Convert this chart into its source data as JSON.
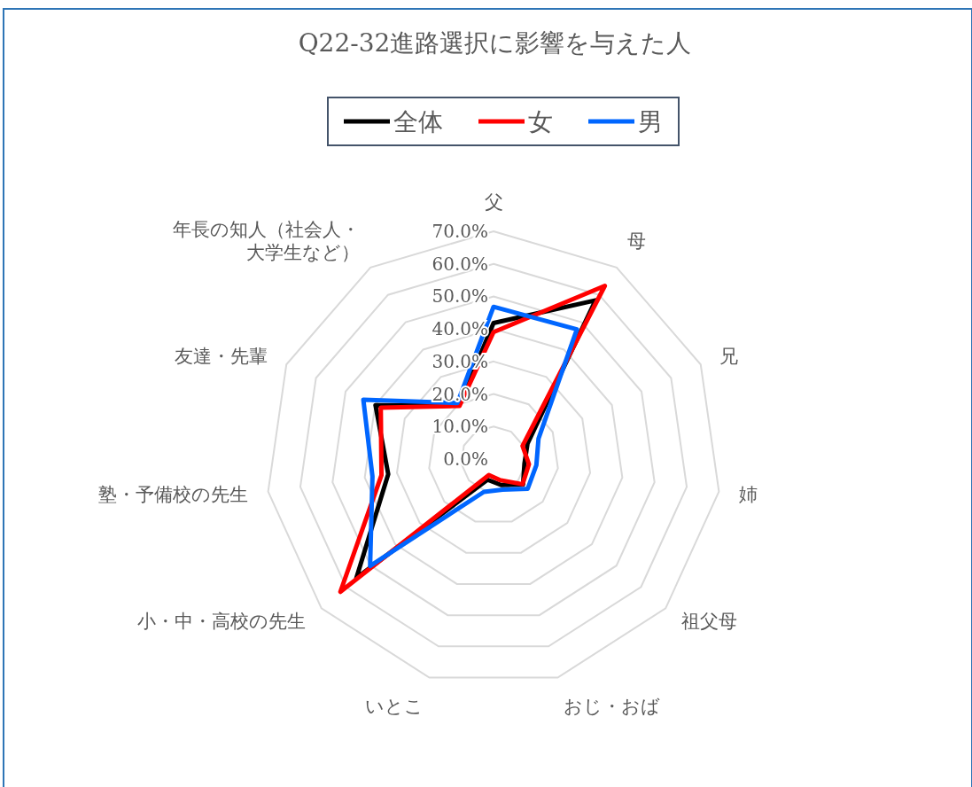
{
  "chart_data": {
    "type": "radar",
    "title": "Q22-32進路選択に影響を与えた人",
    "categories": [
      "父",
      "母",
      "兄",
      "姉",
      "祖父母",
      "おじ・おば",
      "いとこ",
      "小・中・高校の先生",
      "塾・予備校の先生",
      "友達・先輩",
      "年長の知人（社会人・大学生など）"
    ],
    "series": [
      {
        "name": "全体",
        "color": "#000000",
        "values": [
          41.8,
          58.0,
          11.5,
          9.6,
          12.0,
          8.3,
          6.6,
          55.8,
          32.7,
          39.9,
          19.6
        ]
      },
      {
        "name": "女",
        "color": "#ff0000",
        "values": [
          39.0,
          63.3,
          9.8,
          11.0,
          11.8,
          6.7,
          5.1,
          62.3,
          34.8,
          38.1,
          19.4
        ]
      },
      {
        "name": "男",
        "color": "#0066ff",
        "values": [
          46.8,
          47.4,
          15.2,
          13.3,
          13.9,
          9.8,
          10.5,
          50.2,
          37.6,
          44.0,
          20.5
        ]
      }
    ],
    "ylim": [
      0,
      70
    ],
    "yticks": [
      {
        "value": 0,
        "label": "0.0%"
      },
      {
        "value": 10,
        "label": "10.0%"
      },
      {
        "value": 20,
        "label": "20.0%"
      },
      {
        "value": 30,
        "label": "30.0%"
      },
      {
        "value": 40,
        "label": "40.0%"
      },
      {
        "value": 50,
        "label": "50.0%"
      },
      {
        "value": 60,
        "label": "60.0%"
      },
      {
        "value": 70,
        "label": "70.0%"
      }
    ],
    "grid": true,
    "legend": "top"
  }
}
